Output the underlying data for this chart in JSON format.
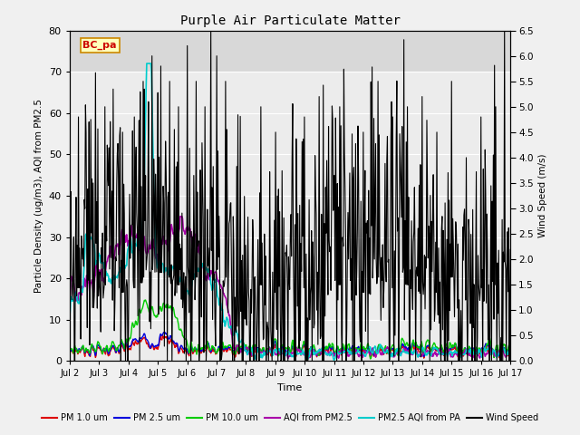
{
  "title": "Purple Air Particulate Matter",
  "xlabel": "Time",
  "ylabel_left": "Particle Density (ug/m3), AQI from PM2.5",
  "ylabel_right": "Wind Speed (m/s)",
  "annotation": "BC_pa",
  "ylim_left": [
    0,
    80
  ],
  "ylim_right": [
    0,
    6.5
  ],
  "yticks_left": [
    0,
    10,
    20,
    30,
    40,
    50,
    60,
    70,
    80
  ],
  "yticks_right": [
    0.0,
    0.5,
    1.0,
    1.5,
    2.0,
    2.5,
    3.0,
    3.5,
    4.0,
    4.5,
    5.0,
    5.5,
    6.0,
    6.5
  ],
  "xtick_labels": [
    "Jul 2",
    "Jul 3",
    "Jul 4",
    "Jul 5",
    "Jul 6",
    "Jul 7",
    "Jul 8",
    "Jul 9",
    "Jul 10",
    "Jul 11",
    "Jul 12",
    "Jul 13",
    "Jul 14",
    "Jul 15",
    "Jul 16",
    "Jul 17"
  ],
  "n_points": 750,
  "background_color": "#f0f0f0",
  "plot_bg_lower": "#dcdcdc",
  "plot_bg_upper": "#e8e8e8",
  "legend_entries": [
    {
      "label": "PM 1.0 um",
      "color": "#dd0000",
      "lw": 1.0
    },
    {
      "label": "PM 2.5 um",
      "color": "#0000dd",
      "lw": 1.0
    },
    {
      "label": "PM 10.0 um",
      "color": "#00cc00",
      "lw": 1.0
    },
    {
      "label": "AQI from PM2.5",
      "color": "#aa00aa",
      "lw": 1.2
    },
    {
      "label": "PM2.5 AQI from PA",
      "color": "#00cccc",
      "lw": 1.2
    },
    {
      "label": "Wind Speed",
      "color": "#000000",
      "lw": 0.8
    }
  ]
}
